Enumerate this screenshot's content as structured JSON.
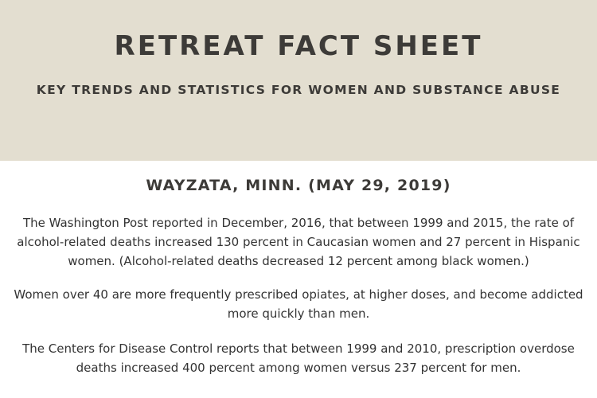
{
  "header": {
    "title": "RETREAT FACT SHEET",
    "subtitle": "KEY TRENDS AND STATISTICS FOR WOMEN AND SUBSTANCE ABUSE",
    "background_color": "#e3ded0"
  },
  "body": {
    "dateline": "WAYZATA, MINN. (MAY 29, 2019)",
    "paragraphs": [
      "The Washington Post reported in December, 2016, that between 1999 and 2015, the rate of alcohol-related deaths increased 130 percent in Caucasian women and 27 percent in Hispanic women. (Alcohol-related deaths decreased 12 percent among black women.)",
      "Women over 40 are more frequently prescribed opiates, at higher doses, and become addicted more quickly than men.",
      "The Centers for Disease Control reports that between 1999 and 2010, prescription overdose deaths increased 400 percent among women versus 237 percent for men."
    ]
  }
}
